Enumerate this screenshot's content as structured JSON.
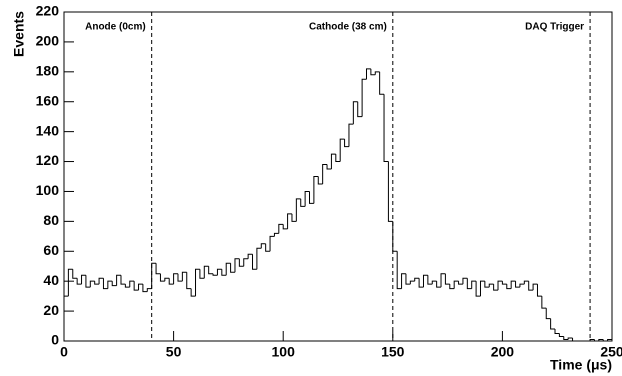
{
  "chart_data": {
    "type": "histogram",
    "xlabel": "Time (μs)",
    "ylabel": "Events",
    "bins": [
      0,
      2,
      4,
      6,
      8,
      10,
      12,
      14,
      16,
      18,
      20,
      22,
      24,
      26,
      28,
      30,
      32,
      34,
      36,
      38,
      40,
      42,
      44,
      46,
      48,
      50,
      52,
      54,
      56,
      58,
      60,
      62,
      64,
      66,
      68,
      70,
      72,
      74,
      76,
      78,
      80,
      82,
      84,
      86,
      88,
      90,
      92,
      94,
      96,
      98,
      100,
      102,
      104,
      106,
      108,
      110,
      112,
      114,
      116,
      118,
      120,
      122,
      124,
      126,
      128,
      130,
      132,
      134,
      136,
      138,
      140,
      142,
      144,
      146,
      148,
      150,
      152,
      154,
      156,
      158,
      160,
      162,
      164,
      166,
      168,
      170,
      172,
      174,
      176,
      178,
      180,
      182,
      184,
      186,
      188,
      190,
      192,
      194,
      196,
      198,
      200,
      202,
      204,
      206,
      208,
      210,
      212,
      214,
      216,
      218,
      220,
      222,
      224,
      226,
      228,
      230,
      232,
      234,
      236,
      238,
      240,
      242,
      244,
      246,
      248,
      250
    ],
    "values": [
      30,
      48,
      42,
      38,
      44,
      36,
      40,
      38,
      42,
      35,
      40,
      37,
      44,
      38,
      36,
      40,
      34,
      38,
      33,
      35,
      52,
      45,
      40,
      42,
      38,
      45,
      40,
      46,
      35,
      30,
      48,
      42,
      50,
      45,
      44,
      48,
      44,
      52,
      46,
      55,
      50,
      55,
      58,
      48,
      62,
      65,
      60,
      70,
      72,
      78,
      75,
      85,
      80,
      95,
      90,
      100,
      92,
      110,
      105,
      118,
      115,
      125,
      120,
      135,
      130,
      145,
      160,
      150,
      175,
      182,
      178,
      180,
      165,
      120,
      80,
      60,
      35,
      45,
      38,
      40,
      42,
      36,
      44,
      38,
      40,
      36,
      45,
      38,
      35,
      40,
      38,
      42,
      35,
      40,
      30,
      40,
      36,
      38,
      34,
      40,
      38,
      35,
      40,
      36,
      38,
      40,
      34,
      38,
      30,
      22,
      15,
      8,
      5,
      3,
      1,
      2,
      0,
      0,
      0,
      0,
      1,
      0,
      1,
      0,
      1
    ],
    "color": "#000000",
    "xlim": [
      0,
      250
    ],
    "xticks": [
      0,
      50,
      100,
      150,
      200,
      250
    ],
    "ylim": [
      0,
      220
    ],
    "yticks": [
      0,
      20,
      40,
      60,
      80,
      100,
      120,
      140,
      160,
      180,
      200,
      220
    ],
    "markers": [
      {
        "x": 40,
        "label": "Anode (0cm)"
      },
      {
        "x": 150,
        "label": "Cathode (38 cm)"
      },
      {
        "x": 240,
        "label": "DAQ Trigger"
      }
    ]
  }
}
